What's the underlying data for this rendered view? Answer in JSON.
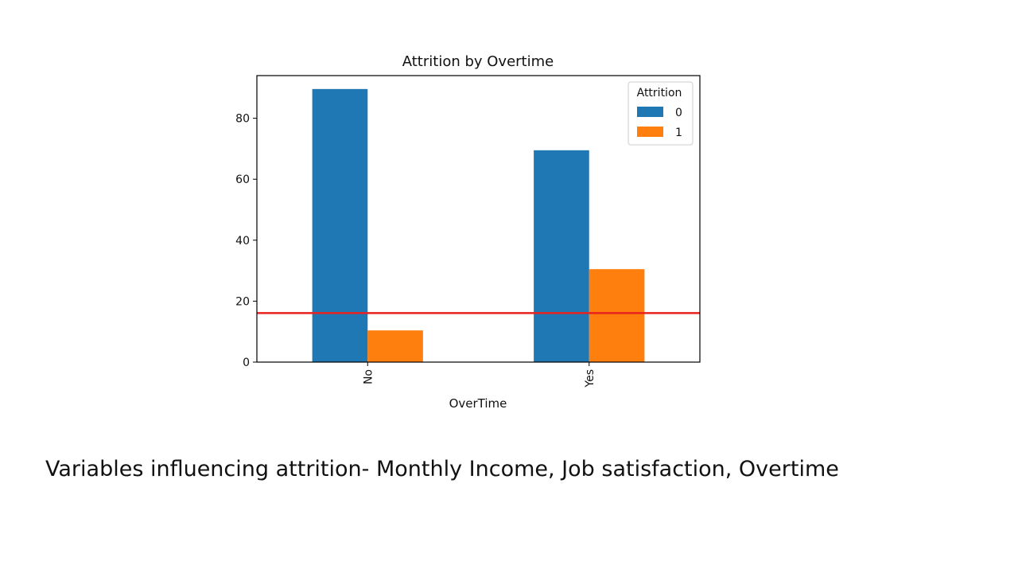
{
  "slide": {
    "caption": "Variables influencing attrition- Monthly Income, Job satisfaction, Overtime"
  },
  "chart_data": {
    "type": "bar",
    "title": "Attrition by Overtime",
    "xlabel": "OverTime",
    "ylabel": "",
    "categories": [
      "No",
      "Yes"
    ],
    "series": [
      {
        "name": "0",
        "values": [
          89.6,
          69.5
        ],
        "color": "#1f77b4"
      },
      {
        "name": "1",
        "values": [
          10.4,
          30.5
        ],
        "color": "#ff7f0e"
      }
    ],
    "ylim": [
      0,
      94
    ],
    "yticks": [
      0,
      20,
      40,
      60,
      80
    ],
    "legend": {
      "title": "Attrition",
      "position": "top-right"
    },
    "reference_line": {
      "y": 16.1,
      "color": "#e8221f"
    },
    "grid": false
  }
}
